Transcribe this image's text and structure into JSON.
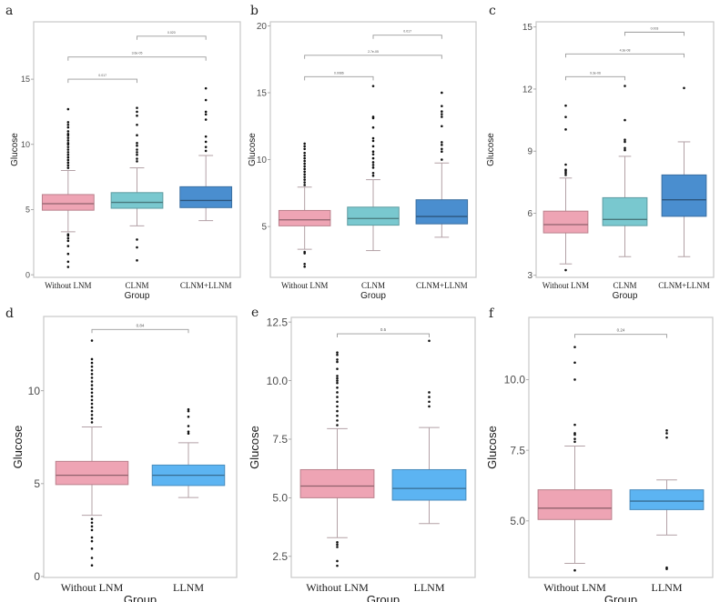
{
  "figure": {
    "panels_count": 6
  },
  "colors": {
    "without_lnm": "#eea4b4",
    "clnm": "#79c8cf",
    "clnm_llnm": "#4a8ecf",
    "llnm": "#5cb4f2",
    "frame": "#c8c8c8",
    "whisker": "#b3a1a6",
    "bracket": "#9a9a9a",
    "outlier": "#111111"
  },
  "chart_data": [
    {
      "type": "box",
      "panel": "a",
      "title": "",
      "xlabel": "Group",
      "ylabel": "Glucose",
      "ylim": [
        -0.2,
        19.4
      ],
      "yticks": [
        0,
        5,
        10,
        15
      ],
      "ytick_labels": [
        "0",
        "5",
        "10",
        "15"
      ],
      "categories": [
        "Without LNM",
        "CLNM",
        "CLNM+LLNM"
      ],
      "boxes": [
        {
          "group": "Without LNM",
          "q1": 4.95,
          "median": 5.45,
          "q3": 6.15,
          "whisker_low": 3.3,
          "whisker_high": 8.0,
          "outliers": [
            12.7,
            11.7,
            11.5,
            11.3,
            11.0,
            10.8,
            10.7,
            10.5,
            10.3,
            10.1,
            10.0,
            9.8,
            9.6,
            9.4,
            9.2,
            9.0,
            8.8,
            8.6,
            8.4,
            8.2,
            3.1,
            3.0,
            2.8,
            2.6,
            2.2,
            1.6,
            1.0,
            0.6
          ]
        },
        {
          "group": "CLNM",
          "q1": 5.1,
          "median": 5.55,
          "q3": 6.3,
          "whisker_low": 3.75,
          "whisker_high": 8.2,
          "outliers": [
            12.8,
            12.5,
            12.2,
            11.5,
            10.7,
            10.1,
            9.9,
            9.6,
            9.4,
            9.2,
            8.9,
            8.7,
            2.7,
            2.1,
            1.1
          ]
        },
        {
          "group": "CLNM+LLNM",
          "q1": 5.15,
          "median": 5.7,
          "q3": 6.75,
          "whisker_low": 4.15,
          "whisker_high": 9.15,
          "outliers": [
            14.3,
            13.4,
            12.5,
            12.3,
            11.9,
            10.6,
            10.2,
            9.8,
            9.5
          ]
        }
      ],
      "comparisons": [
        {
          "groups": [
            "Without LNM",
            "CLNM"
          ],
          "p": "0.017",
          "y": 15.0
        },
        {
          "groups": [
            "Without LNM",
            "CLNM+LLNM"
          ],
          "p": "3.6e-05",
          "y": 16.7
        },
        {
          "groups": [
            "CLNM",
            "CLNM+LLNM"
          ],
          "p": "0.020",
          "y": 18.3
        }
      ]
    },
    {
      "type": "box",
      "panel": "b",
      "title": "",
      "xlabel": "Group",
      "ylabel": "Glucose",
      "ylim": [
        1.2,
        20.3
      ],
      "yticks": [
        5,
        10,
        15,
        20
      ],
      "ytick_labels": [
        "5",
        "10",
        "15",
        "20"
      ],
      "categories": [
        "Without LNM",
        "CLNM",
        "CLNM+LLNM"
      ],
      "boxes": [
        {
          "group": "Without LNM",
          "q1": 5.05,
          "median": 5.5,
          "q3": 6.2,
          "whisker_low": 3.3,
          "whisker_high": 7.95,
          "outliers": [
            11.2,
            11.0,
            10.8,
            10.5,
            10.3,
            10.1,
            9.9,
            9.7,
            9.5,
            9.3,
            9.1,
            8.9,
            8.7,
            8.5,
            8.3,
            8.1,
            3.1,
            3.0,
            2.2,
            2.0
          ]
        },
        {
          "group": "CLNM",
          "q1": 5.1,
          "median": 5.6,
          "q3": 6.45,
          "whisker_low": 3.2,
          "whisker_high": 8.5,
          "outliers": [
            15.5,
            13.2,
            13.1,
            12.4,
            11.6,
            11.4,
            11.0,
            10.6,
            10.4,
            10.1,
            9.8,
            9.6,
            9.4,
            9.0,
            8.8
          ]
        },
        {
          "group": "CLNM+LLNM",
          "q1": 5.2,
          "median": 5.75,
          "q3": 7.0,
          "whisker_low": 4.2,
          "whisker_high": 9.75,
          "outliers": [
            15.0,
            14.0,
            13.6,
            13.4,
            13.2,
            12.5,
            11.3,
            11.1,
            10.8,
            10.6,
            10.0
          ]
        }
      ],
      "comparisons": [
        {
          "groups": [
            "Without LNM",
            "CLNM"
          ],
          "p": "0.0086",
          "y": 16.2
        },
        {
          "groups": [
            "Without LNM",
            "CLNM+LLNM"
          ],
          "p": "2.7e-05",
          "y": 17.8
        },
        {
          "groups": [
            "CLNM",
            "CLNM+LLNM"
          ],
          "p": "0.017",
          "y": 19.3
        }
      ]
    },
    {
      "type": "box",
      "panel": "c",
      "title": "",
      "xlabel": "Group",
      "ylabel": "Glucose",
      "ylim": [
        2.9,
        15.25
      ],
      "yticks": [
        3,
        6,
        9,
        12,
        15
      ],
      "ytick_labels": [
        "3",
        "6",
        "9",
        "12",
        "15"
      ],
      "categories": [
        "Without LNM",
        "CLNM",
        "CLNM+LLNM"
      ],
      "boxes": [
        {
          "group": "Without LNM",
          "q1": 5.05,
          "median": 5.45,
          "q3": 6.1,
          "whisker_low": 3.55,
          "whisker_high": 7.7,
          "outliers": [
            11.2,
            10.65,
            10.05,
            8.35,
            8.1,
            8.05,
            7.95,
            7.85,
            3.25
          ]
        },
        {
          "group": "CLNM",
          "q1": 5.4,
          "median": 5.7,
          "q3": 6.75,
          "whisker_low": 3.9,
          "whisker_high": 8.75,
          "outliers": [
            12.15,
            10.5,
            9.55,
            9.45,
            9.15,
            9.05
          ]
        },
        {
          "group": "CLNM+LLNM",
          "q1": 5.85,
          "median": 6.65,
          "q3": 7.85,
          "whisker_low": 3.9,
          "whisker_high": 9.45,
          "outliers": [
            12.05
          ]
        }
      ],
      "comparisons": [
        {
          "groups": [
            "Without LNM",
            "CLNM"
          ],
          "p": "9.3e-06",
          "y": 12.6
        },
        {
          "groups": [
            "Without LNM",
            "CLNM+LLNM"
          ],
          "p": "4.3e-08",
          "y": 13.7
        },
        {
          "groups": [
            "CLNM",
            "CLNM+LLNM"
          ],
          "p": "0.003",
          "y": 14.75
        }
      ]
    },
    {
      "type": "box",
      "panel": "d",
      "title": "",
      "xlabel": "Group",
      "ylabel": "Glucose",
      "ylim": [
        -0.05,
        14.0
      ],
      "yticks": [
        0,
        5,
        10
      ],
      "ytick_labels": [
        "0",
        "5",
        "10"
      ],
      "categories": [
        "Without LNM",
        "LLNM"
      ],
      "boxes": [
        {
          "group": "Without LNM",
          "q1": 4.95,
          "median": 5.45,
          "q3": 6.2,
          "whisker_low": 3.3,
          "whisker_high": 8.05,
          "outliers": [
            12.7,
            11.7,
            11.5,
            11.3,
            11.1,
            10.9,
            10.7,
            10.5,
            10.3,
            10.1,
            9.9,
            9.7,
            9.5,
            9.3,
            9.1,
            8.9,
            8.7,
            8.5,
            8.3,
            3.1,
            2.9,
            2.7,
            2.5,
            2.1,
            1.9,
            1.5,
            1.0,
            0.6
          ]
        },
        {
          "group": "LLNM",
          "q1": 4.9,
          "median": 5.45,
          "q3": 6.0,
          "whisker_low": 4.25,
          "whisker_high": 7.2,
          "outliers": [
            9.0,
            8.9,
            8.6,
            8.1,
            7.8,
            7.7
          ]
        }
      ],
      "comparisons": [
        {
          "groups": [
            "Without LNM",
            "LLNM"
          ],
          "p": "0.84",
          "y": 13.3
        }
      ]
    },
    {
      "type": "box",
      "panel": "e",
      "title": "",
      "xlabel": "Group",
      "ylabel": "Glucose",
      "ylim": [
        1.6,
        12.7
      ],
      "yticks": [
        2.5,
        5.0,
        7.5,
        10.0,
        12.5
      ],
      "ytick_labels": [
        "2.5",
        "5.0",
        "7.5",
        "10.0",
        "12.5"
      ],
      "categories": [
        "Without LNM",
        "LLNM"
      ],
      "boxes": [
        {
          "group": "Without LNM",
          "q1": 5.0,
          "median": 5.5,
          "q3": 6.2,
          "whisker_low": 3.3,
          "whisker_high": 7.95,
          "outliers": [
            11.2,
            11.1,
            10.9,
            10.8,
            10.5,
            10.2,
            10.1,
            10.0,
            9.9,
            9.7,
            9.5,
            9.3,
            9.1,
            8.9,
            8.7,
            8.5,
            8.3,
            8.1,
            3.1,
            3.0,
            2.9,
            2.3,
            2.1
          ]
        },
        {
          "group": "LLNM",
          "q1": 4.9,
          "median": 5.4,
          "q3": 6.2,
          "whisker_low": 3.9,
          "whisker_high": 8.0,
          "outliers": [
            11.7,
            9.5,
            9.3,
            9.1,
            8.9
          ]
        }
      ],
      "comparisons": [
        {
          "groups": [
            "Without LNM",
            "LLNM"
          ],
          "p": "0.5",
          "y": 12.0
        }
      ]
    },
    {
      "type": "box",
      "panel": "f",
      "title": "",
      "xlabel": "Group",
      "ylabel": "Glucose",
      "ylim": [
        3.0,
        12.2
      ],
      "yticks": [
        5.0,
        7.5,
        10.0
      ],
      "ytick_labels": [
        "5.0",
        "7.5",
        "10.0"
      ],
      "categories": [
        "Without LNM",
        "LLNM"
      ],
      "boxes": [
        {
          "group": "Without LNM",
          "q1": 5.05,
          "median": 5.45,
          "q3": 6.1,
          "whisker_low": 3.5,
          "whisker_high": 7.65,
          "outliers": [
            11.15,
            10.6,
            10.0,
            8.4,
            8.1,
            8.05,
            7.9,
            7.8,
            3.25
          ]
        },
        {
          "group": "LLNM",
          "q1": 5.4,
          "median": 5.7,
          "q3": 6.1,
          "whisker_low": 4.5,
          "whisker_high": 6.45,
          "outliers": [
            8.2,
            8.1,
            7.95,
            3.35,
            3.3
          ]
        }
      ],
      "comparisons": [
        {
          "groups": [
            "Without LNM",
            "LLNM"
          ],
          "p": "0.24",
          "y": 11.6
        }
      ]
    }
  ]
}
